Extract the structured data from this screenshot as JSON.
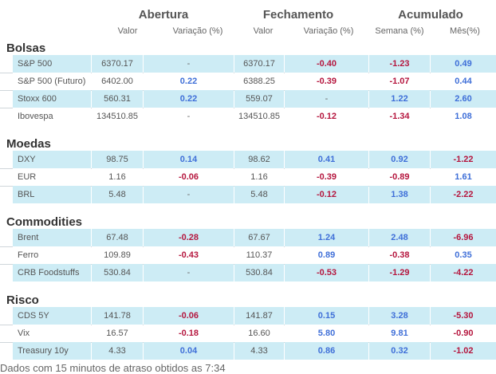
{
  "header": {
    "groups": {
      "abertura": "Abertura",
      "fechamento": "Fechamento",
      "acumulado": "Acumulado"
    },
    "columns": {
      "abertura_valor": "Valor",
      "abertura_var": "Variação (%)",
      "fechamento_valor": "Valor",
      "fechamento_var": "Variação (%)",
      "semana": "Semana (%)",
      "mes": "Mês(%)"
    }
  },
  "sections": [
    {
      "title": "Bolsas",
      "rows": [
        {
          "name": "S&P 500",
          "op_val": "6370.17",
          "op_var": "-",
          "cl_val": "6370.17",
          "cl_var": "-0.40",
          "week": "-1.23",
          "month": "0.49"
        },
        {
          "name": "S&P 500 (Futuro)",
          "op_val": "6402.00",
          "op_var": "0.22",
          "cl_val": "6388.25",
          "cl_var": "-0.39",
          "week": "-1.07",
          "month": "0.44"
        },
        {
          "name": "Stoxx 600",
          "op_val": "560.31",
          "op_var": "0.22",
          "cl_val": "559.07",
          "cl_var": "-",
          "week": "1.22",
          "month": "2.60"
        },
        {
          "name": "Ibovespa",
          "op_val": "134510.85",
          "op_var": "-",
          "cl_val": "134510.85",
          "cl_var": "-0.12",
          "week": "-1.34",
          "month": "1.08"
        }
      ]
    },
    {
      "title": "Moedas",
      "rows": [
        {
          "name": "DXY",
          "op_val": "98.75",
          "op_var": "0.14",
          "cl_val": "98.62",
          "cl_var": "0.41",
          "week": "0.92",
          "month": "-1.22"
        },
        {
          "name": "EUR",
          "op_val": "1.16",
          "op_var": "-0.06",
          "cl_val": "1.16",
          "cl_var": "-0.39",
          "week": "-0.89",
          "month": "1.61"
        },
        {
          "name": "BRL",
          "op_val": "5.48",
          "op_var": "-",
          "cl_val": "5.48",
          "cl_var": "-0.12",
          "week": "1.38",
          "month": "-2.22"
        }
      ]
    },
    {
      "title": "Commodities",
      "rows": [
        {
          "name": "Brent",
          "op_val": "67.48",
          "op_var": "-0.28",
          "cl_val": "67.67",
          "cl_var": "1.24",
          "week": "2.48",
          "month": "-6.96"
        },
        {
          "name": "Ferro",
          "op_val": "109.89",
          "op_var": "-0.43",
          "cl_val": "110.37",
          "cl_var": "0.89",
          "week": "-0.38",
          "month": "0.35"
        },
        {
          "name": "CRB Foodstuffs",
          "op_val": "530.84",
          "op_var": "-",
          "cl_val": "530.84",
          "cl_var": "-0.53",
          "week": "-1.29",
          "month": "-4.22"
        }
      ]
    },
    {
      "title": "Risco",
      "rows": [
        {
          "name": "CDS 5Y",
          "op_val": "141.78",
          "op_var": "-0.06",
          "cl_val": "141.87",
          "cl_var": "0.15",
          "week": "3.28",
          "month": "-5.30"
        },
        {
          "name": "Vix",
          "op_val": "16.57",
          "op_var": "-0.18",
          "cl_val": "16.60",
          "cl_var": "5.80",
          "week": "9.81",
          "month": "-0.90"
        },
        {
          "name": "Treasury 10y",
          "op_val": "4.33",
          "op_var": "0.04",
          "cl_val": "4.33",
          "cl_var": "0.86",
          "week": "0.32",
          "month": "-1.02"
        }
      ]
    }
  ],
  "footer": {
    "note": "Dados com 15 minutos de atraso obtidos as 7:34"
  },
  "colors": {
    "positive": "#3f6fd8",
    "negative": "#b5163e",
    "row_highlight": "#cdecf5"
  }
}
